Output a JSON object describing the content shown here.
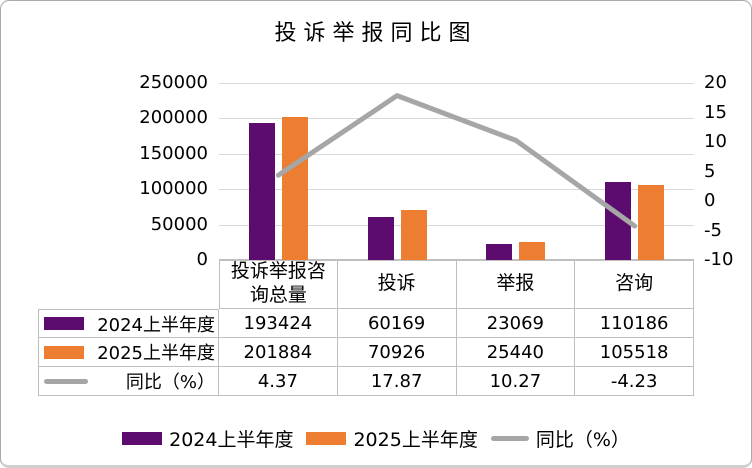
{
  "title": "投诉举报同比图",
  "chart_data": {
    "type": "bar",
    "subtype": "combo-bar-line",
    "categories": [
      "投诉举报咨询总量",
      "投诉",
      "举报",
      "咨询"
    ],
    "series": [
      {
        "name": "2024上半年度",
        "type": "bar",
        "axis": "left",
        "color": "#5C0B6E",
        "values": [
          193424,
          60169,
          23069,
          110186
        ]
      },
      {
        "name": "2025上半年度",
        "type": "bar",
        "axis": "left",
        "color": "#ED7D31",
        "values": [
          201884,
          70926,
          25440,
          105518
        ]
      },
      {
        "name": "同比（%）",
        "type": "line",
        "axis": "right",
        "color": "#A6A6A6",
        "values": [
          4.37,
          17.87,
          10.27,
          -4.23
        ]
      }
    ],
    "left_axis": {
      "min": 0,
      "max": 250000,
      "step": 50000,
      "tick_labels": [
        "250000",
        "200000",
        "150000",
        "100000",
        "50000",
        "0"
      ]
    },
    "right_axis": {
      "min": -10,
      "max": 20,
      "step": 5,
      "tick_labels": [
        "20",
        "15",
        "10",
        "5",
        "0",
        "-5",
        "-10"
      ]
    },
    "grid": true,
    "legend_position": "bottom",
    "data_table_shown": true
  },
  "colors": {
    "gridline": "#D9D9D9",
    "axis_border": "#BFBFBF",
    "text": "#000000",
    "background": "#FFFFFF"
  }
}
